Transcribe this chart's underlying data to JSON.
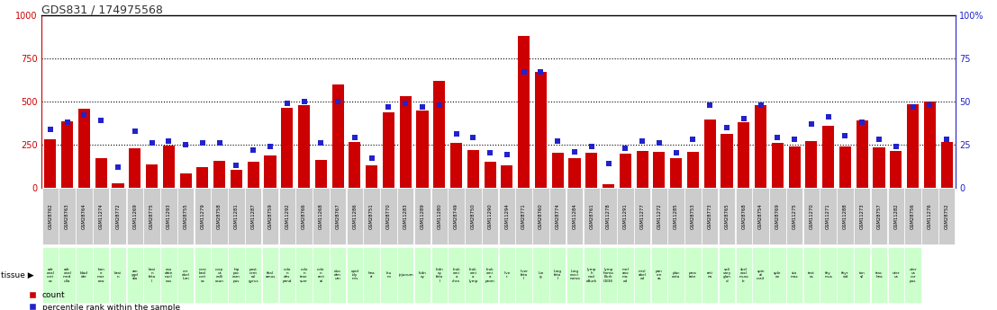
{
  "title": "GDS831 / 174975568",
  "samples": [
    "GSM28762",
    "GSM28763",
    "GSM28764",
    "GSM11274",
    "GSM28772",
    "GSM11269",
    "GSM28775",
    "GSM11293",
    "GSM28755",
    "GSM11279",
    "GSM28758",
    "GSM11281",
    "GSM11287",
    "GSM28759",
    "GSM11292",
    "GSM28766",
    "GSM11268",
    "GSM28767",
    "GSM11286",
    "GSM28751",
    "GSM28770",
    "GSM11283",
    "GSM11289",
    "GSM11280",
    "GSM28749",
    "GSM28750",
    "GSM11290",
    "GSM11294",
    "GSM28771",
    "GSM28760",
    "GSM28774",
    "GSM11284",
    "GSM28761",
    "GSM11278",
    "GSM11291",
    "GSM11277",
    "GSM11272",
    "GSM11285",
    "GSM28753",
    "GSM28773",
    "GSM28765",
    "GSM28768",
    "GSM28754",
    "GSM28769",
    "GSM11275",
    "GSM11270",
    "GSM11271",
    "GSM11288",
    "GSM11273",
    "GSM28757",
    "GSM11282",
    "GSM28756",
    "GSM11276",
    "GSM28752"
  ],
  "tissues": [
    "adr\nenal\ncort\nex",
    "adr\nenal\nmed\nulla",
    "blad\nder",
    "bon\ne\nmar\nrow",
    "brai\nn",
    "am\nygd\nala",
    "brai\nn\nfeta\nl",
    "cau\ndate\nnucl\neus",
    "cer\nebel\nlum",
    "cere\nbral\ncort\nex",
    "corp\nus\ncalli\nosun",
    "hip\npoc\ncam\npus",
    "post\ncent\nral\ngyrus",
    "thal\namus",
    "colo\nn\ndes\npend",
    "colo\nn\ntran\nsver",
    "colo\nn\nrect\nal",
    "duo\nden\num",
    "epid\nidy\nmis",
    "hea\nrt",
    "leu\nm",
    "jejunum",
    "kidn\ney",
    "kidn\ney\nfeta\nl",
    "leuk\nemi\na\nchro",
    "leuk\nemi\na\nlymp",
    "leuk\nemi\na\nprom",
    "live\nr",
    "liver\nfeta\nl",
    "lun\ng",
    "lung\nfeta\nl",
    "lung\ncarci\nnoma",
    "lymp\nh\nnod\neBurk",
    "lymp\nhoma\nBurk\nG336",
    "mel\nano\nma\ned",
    "misl\nabel\ned",
    "pan\ncre\nas",
    "plac\nenta",
    "pros\ntate",
    "reti\nna",
    "sali\nvary\nglan\nd",
    "skel\netal\nmusc\nle",
    "spin\nal\ncord",
    "sple\nen",
    "sto\nmac",
    "test\nes",
    "thy\nmus",
    "thyr\noid",
    "ton\nsil",
    "trac\nhea",
    "uter\nus",
    "uter\nus\ncor\npus"
  ],
  "counts": [
    280,
    385,
    460,
    170,
    25,
    230,
    135,
    245,
    80,
    120,
    155,
    105,
    150,
    185,
    465,
    480,
    160,
    600,
    265,
    130,
    435,
    530,
    450,
    620,
    260,
    220,
    150,
    130,
    880,
    670,
    200,
    170,
    200,
    20,
    195,
    215,
    210,
    170,
    210,
    395,
    310,
    380,
    480,
    260,
    240,
    270,
    360,
    240,
    390,
    235,
    215,
    485,
    500,
    265
  ],
  "percentiles": [
    34,
    38,
    42,
    39,
    12,
    33,
    26,
    27,
    25,
    26,
    26,
    13,
    22,
    24,
    49,
    50,
    26,
    50,
    29,
    17,
    47,
    49,
    47,
    48,
    31,
    29,
    20,
    19,
    67,
    67,
    27,
    21,
    24,
    14,
    23,
    27,
    26,
    20,
    28,
    48,
    35,
    40,
    48,
    29,
    28,
    37,
    41,
    30,
    38,
    28,
    24,
    47,
    48,
    28
  ],
  "ylim_left": [
    0,
    1000
  ],
  "ylim_right": [
    0,
    100
  ],
  "yticks_left": [
    0,
    250,
    500,
    750,
    1000
  ],
  "yticks_right": [
    0,
    25,
    50,
    75,
    100
  ],
  "bar_color": "#cc0000",
  "dot_color": "#2222cc",
  "grid_color": "#000000",
  "bg_color": "#ffffff",
  "title_color": "#333333",
  "tissue_bg_color": "#ccffcc",
  "sample_bg_color": "#cccccc",
  "right_axis_color": "#2222cc",
  "left_axis_color": "#cc0000"
}
